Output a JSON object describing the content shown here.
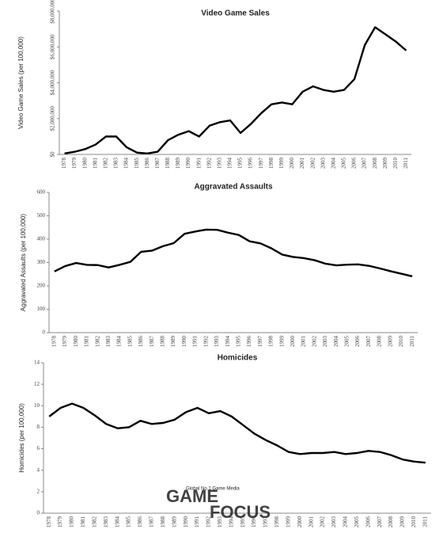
{
  "chart_data": [
    {
      "type": "line",
      "title": "Video Game Sales",
      "y_label": "Video Game Sales (per 100,000)",
      "color": "#000000",
      "categories": [
        "1978",
        "1979",
        "1980",
        "1981",
        "1982",
        "1983",
        "1984",
        "1985",
        "1986",
        "1987",
        "1988",
        "1989",
        "1990",
        "1991",
        "1992",
        "1993",
        "1994",
        "1995",
        "1996",
        "1997",
        "1998",
        "1999",
        "2000",
        "2001",
        "2002",
        "2003",
        "2004",
        "2005",
        "2006",
        "2007",
        "2008",
        "2009",
        "2010",
        "2011"
      ],
      "values": [
        50000,
        150000,
        300000,
        550000,
        1000000,
        1000000,
        400000,
        100000,
        50000,
        150000,
        800000,
        1100000,
        1300000,
        1000000,
        1600000,
        1800000,
        1900000,
        1200000,
        1700000,
        2300000,
        2800000,
        2900000,
        2800000,
        3500000,
        3800000,
        3600000,
        3500000,
        3600000,
        4200000,
        6100000,
        7100000,
        6700000,
        6300000,
        5800000
      ],
      "ylim": [
        0,
        8000000
      ],
      "yticks": [
        {
          "value": 0,
          "label": "$0"
        },
        {
          "value": 2000000,
          "label": "$2,000,000"
        },
        {
          "value": 4000000,
          "label": "$4,000,000"
        },
        {
          "value": 6000000,
          "label": "$6,000,000"
        },
        {
          "value": 8000000,
          "label": "$8,000,000"
        }
      ],
      "grid": false
    },
    {
      "type": "line",
      "title": "Aggravated Assaults",
      "y_label": "Aggravated Assaults (per 100,000)",
      "color": "#000000",
      "categories": [
        "1978",
        "1979",
        "1980",
        "1981",
        "1982",
        "1983",
        "1984",
        "1985",
        "1986",
        "1987",
        "1988",
        "1989",
        "1990",
        "1991",
        "1992",
        "1993",
        "1994",
        "1995",
        "1996",
        "1997",
        "1998",
        "1999",
        "2000",
        "2001",
        "2002",
        "2003",
        "2004",
        "2005",
        "2006",
        "2007",
        "2008",
        "2009",
        "2010",
        "2011"
      ],
      "values": [
        262,
        285,
        298,
        290,
        289,
        279,
        290,
        303,
        346,
        351,
        370,
        383,
        423,
        433,
        441,
        440,
        428,
        418,
        391,
        382,
        361,
        334,
        324,
        319,
        310,
        295,
        288,
        291,
        292,
        286,
        275,
        263,
        252,
        241
      ],
      "ylim": [
        0,
        600
      ],
      "yticks": [
        0,
        100,
        200,
        300,
        400,
        500,
        600
      ],
      "grid": false
    },
    {
      "type": "line",
      "title": "Homicides",
      "y_label": "Homicides (per 100,000)",
      "color": "#000000",
      "categories": [
        "1978",
        "1979",
        "1980",
        "1981",
        "1982",
        "1983",
        "1984",
        "1985",
        "1986",
        "1987",
        "1988",
        "1989",
        "1990",
        "1991",
        "1992",
        "1993",
        "1994",
        "1995",
        "1996",
        "1997",
        "1998",
        "1999",
        "2000",
        "2001",
        "2002",
        "2003",
        "2004",
        "2005",
        "2006",
        "2007",
        "2008",
        "2009",
        "2010",
        "2011"
      ],
      "values": [
        9.0,
        9.8,
        10.2,
        9.8,
        9.1,
        8.3,
        7.9,
        8.0,
        8.6,
        8.3,
        8.4,
        8.7,
        9.4,
        9.8,
        9.3,
        9.5,
        9.0,
        8.2,
        7.4,
        6.8,
        6.3,
        5.7,
        5.5,
        5.6,
        5.6,
        5.7,
        5.5,
        5.6,
        5.8,
        5.7,
        5.4,
        5.0,
        4.8,
        4.7
      ],
      "ylim": [
        0,
        14
      ],
      "yticks": [
        0,
        2,
        4,
        6,
        8,
        10,
        12,
        14
      ],
      "grid": false
    }
  ],
  "watermark": {
    "tagline": "Global No.1 Game Media",
    "brand_top": "GAME",
    "brand_bottom": "FOCUS"
  }
}
